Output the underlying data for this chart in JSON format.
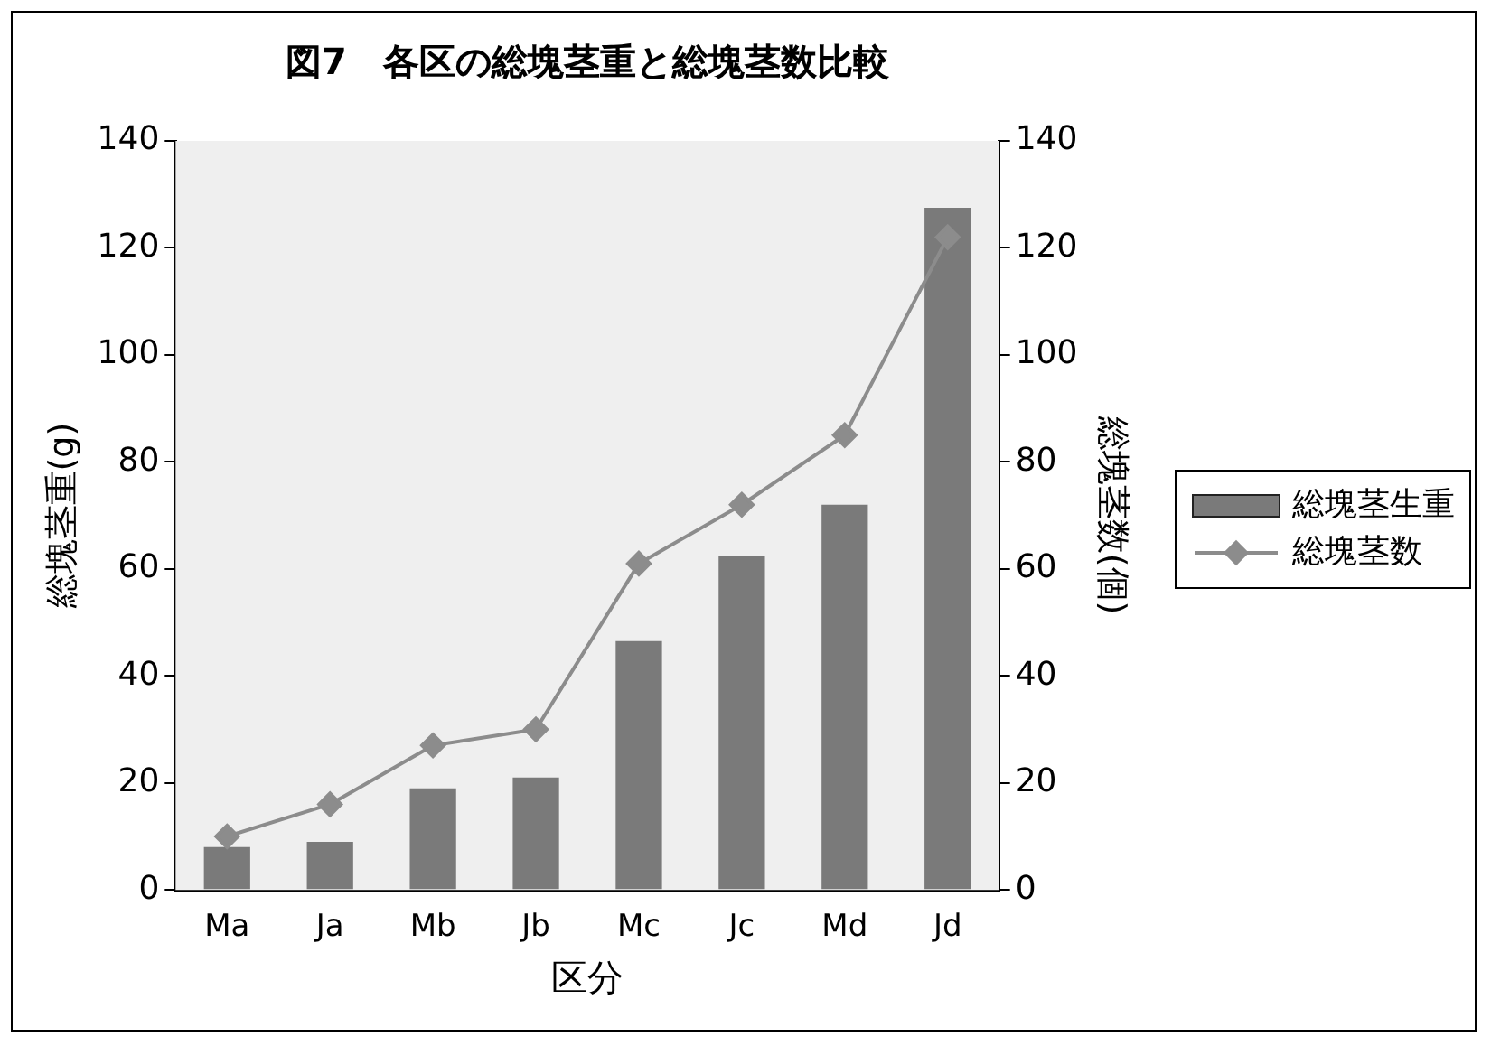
{
  "chart_data": {
    "type": "bar",
    "title": "図7　各区の総塊茎重と総塊茎数比較",
    "xlabel": "区分",
    "ylabel": "総塊茎重(g)",
    "y2label": "総塊茎数(個)",
    "categories": [
      "Ma",
      "Ja",
      "Mb",
      "Jb",
      "Mc",
      "Jc",
      "Md",
      "Jd"
    ],
    "series": [
      {
        "name": "総塊茎生重",
        "color": "#7a7a7a",
        "values": [
          8,
          9,
          19,
          21,
          46.5,
          62.5,
          72,
          127.5
        ]
      },
      {
        "name": "総塊茎数",
        "type": "line",
        "axis": "y2",
        "color": "#8c8c8c",
        "marker": "diamond",
        "values": [
          10,
          16,
          27,
          30,
          61,
          72,
          85,
          122
        ]
      }
    ],
    "ylim": [
      0,
      140
    ],
    "yticks": [
      0,
      20,
      40,
      60,
      80,
      100,
      120,
      140
    ],
    "y2lim": [
      0,
      140
    ],
    "y2ticks": [
      0,
      20,
      40,
      60,
      80,
      100,
      120,
      140
    ],
    "grid": false,
    "legend": "right"
  }
}
